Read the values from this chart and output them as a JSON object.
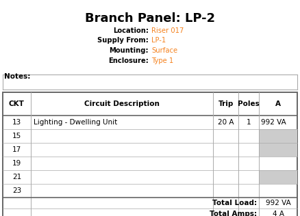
{
  "title": "Branch Panel: LP-2",
  "header_info": [
    {
      "label": "Location:",
      "value": "Riser 017"
    },
    {
      "label": "Supply From:",
      "value": "LP-1"
    },
    {
      "label": "Mounting:",
      "value": "Surface"
    },
    {
      "label": "Enclosure:",
      "value": "Type 1"
    }
  ],
  "notes_label": "Notes:",
  "col_headers": [
    "CKT",
    "Circuit Description",
    "Trip",
    "Poles",
    "A"
  ],
  "circuits": [
    {
      "ckt": "13",
      "desc": "Lighting - Dwelling Unit",
      "trip": "20 A",
      "poles": "1",
      "a": "992 VA",
      "shade_a": false,
      "shade_b": true
    },
    {
      "ckt": "15",
      "desc": "",
      "trip": "",
      "poles": "",
      "a": "",
      "shade_a": true,
      "shade_b": true
    },
    {
      "ckt": "17",
      "desc": "",
      "trip": "",
      "poles": "",
      "a": "",
      "shade_a": true,
      "shade_b": true
    },
    {
      "ckt": "19",
      "desc": "",
      "trip": "",
      "poles": "",
      "a": "",
      "shade_a": false,
      "shade_b": false
    },
    {
      "ckt": "21",
      "desc": "",
      "trip": "",
      "poles": "",
      "a": "",
      "shade_a": true,
      "shade_b": true
    },
    {
      "ckt": "23",
      "desc": "",
      "trip": "",
      "poles": "",
      "a": "",
      "shade_a": false,
      "shade_b": false
    }
  ],
  "total_load_label": "Total Load:",
  "total_load_value": "992 VA",
  "total_amps_label": "Total Amps:",
  "total_amps_value": "4 A",
  "bg_color": "#ffffff",
  "header_label_color": "#000000",
  "header_value_color": "#f5821f",
  "title_color": "#000000",
  "table_border_color": "#666666",
  "row_line_color": "#aaaaaa",
  "shade_color": "#cccccc",
  "figw": 4.38,
  "figh": 3.16,
  "dpi": 100
}
